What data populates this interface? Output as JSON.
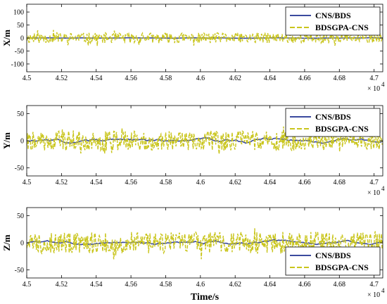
{
  "chart_data": [
    {
      "type": "line",
      "xlabel": "",
      "ylabel": "X/m",
      "xlim": [
        45000,
        47050
      ],
      "ylim": [
        -130,
        130
      ],
      "x_ticks": [
        "4.5",
        "4.52",
        "4.54",
        "4.56",
        "4.58",
        "4.6",
        "4.62",
        "4.64",
        "4.66",
        "4.68",
        "4.7"
      ],
      "y_ticks": [
        "100",
        "50",
        "0",
        "-50",
        "-100"
      ],
      "x_exponent_base": "× 10",
      "x_exponent_power": "4",
      "grid": false,
      "legend_position": "top-right",
      "series": [
        {
          "name": "CNS/BDS",
          "color": "#3b4a9e",
          "style": "solid",
          "amplitude": 1,
          "seed": 1
        },
        {
          "name": "BDSGPA-CNS",
          "color": "#c9c51c",
          "style": "dashed",
          "amplitude": 20,
          "seed": 11
        }
      ]
    },
    {
      "type": "line",
      "xlabel": "",
      "ylabel": "Y/m",
      "xlim": [
        45000,
        47050
      ],
      "ylim": [
        -65,
        65
      ],
      "x_ticks": [
        "4.5",
        "4.52",
        "4.54",
        "4.56",
        "4.58",
        "4.6",
        "4.62",
        "4.64",
        "4.66",
        "4.68",
        "4.7"
      ],
      "y_ticks": [
        "50",
        "0",
        "-50"
      ],
      "x_exponent_base": "× 10",
      "x_exponent_power": "4",
      "grid": false,
      "legend_position": "top-right",
      "series": [
        {
          "name": "CNS/BDS",
          "color": "#3b4a9e",
          "style": "solid",
          "amplitude": 5,
          "seed": 2
        },
        {
          "name": "BDSGPA-CNS",
          "color": "#c9c51c",
          "style": "dashed",
          "amplitude": 18,
          "seed": 22
        }
      ]
    },
    {
      "type": "line",
      "xlabel": "Time/s",
      "ylabel": "Z/m",
      "xlim": [
        45000,
        47050
      ],
      "ylim": [
        -65,
        65
      ],
      "x_ticks": [
        "4.5",
        "4.52",
        "4.54",
        "4.56",
        "4.58",
        "4.6",
        "4.62",
        "4.64",
        "4.66",
        "4.68",
        "4.7"
      ],
      "y_ticks": [
        "50",
        "0",
        "-50"
      ],
      "x_exponent_base": "× 10",
      "x_exponent_power": "4",
      "grid": false,
      "legend_position": "bottom-right",
      "series": [
        {
          "name": "CNS/BDS",
          "color": "#3b4a9e",
          "style": "solid",
          "amplitude": 4,
          "seed": 3
        },
        {
          "name": "BDSGPA-CNS",
          "color": "#c9c51c",
          "style": "dashed",
          "amplitude": 20,
          "seed": 33
        }
      ]
    }
  ]
}
